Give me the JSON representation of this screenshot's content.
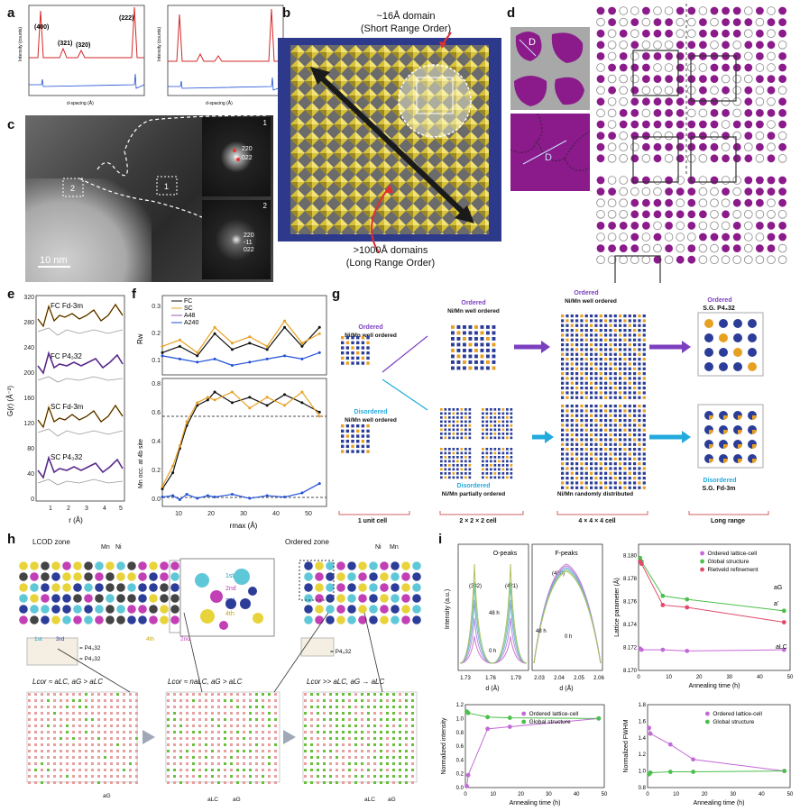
{
  "panels": {
    "a": {
      "label": "a",
      "ylabel": "Intensity (counts)",
      "xlabel": "d-spacing (Å)",
      "peaks": [
        "(400)",
        "(321)",
        "(320)",
        "(222)"
      ],
      "xticks": [
        "2.0",
        "2.2",
        "2.4",
        "2.6",
        "2.8",
        "3.0",
        "3.2",
        "3.4"
      ],
      "yticks": [
        "20",
        "15",
        "10",
        "5",
        "0"
      ]
    },
    "b": {
      "label": "b",
      "short_range_title": "~16Å domain",
      "short_range_sub": "(Short Range Order)",
      "long_range_title": ">1000Å domains",
      "long_range_sub": "(Long Range Order)"
    },
    "c": {
      "label": "c",
      "scale_bar": "10 nm",
      "box1": "1",
      "box2": "2",
      "fft1_num": "1",
      "fft2_num": "2",
      "fft1_spots": [
        "220",
        "022"
      ],
      "fft2_spots": [
        "220",
        "-11",
        "022"
      ]
    },
    "d": {
      "label": "d",
      "domain_label": "D"
    },
    "e": {
      "label": "e",
      "ylabel": "G(r) (Å⁻²)",
      "xlabel": "r (Å)",
      "yticks": [
        "320",
        "280",
        "240",
        "200",
        "160",
        "120",
        "80",
        "40",
        "0"
      ],
      "xticks": [
        "1",
        "2",
        "3",
        "4",
        "5"
      ],
      "curves": [
        "FC Fd-3m",
        "FC P4₃32",
        "SC Fd-3m",
        "SC P4₃32"
      ]
    },
    "f": {
      "label": "f",
      "legend": [
        "FC",
        "SC",
        "A48",
        "A240"
      ],
      "ylabel_top": "Rw",
      "ylabel_bottom": "Mn occ. at 4b site",
      "xlabel": "rmax (Å)",
      "yticks_top": [
        "0.3",
        "0.2",
        "0.1"
      ],
      "yticks_bottom": [
        "0.8",
        "0.6",
        "0.4",
        "0.2",
        "0.0"
      ],
      "xticks": [
        "10",
        "20",
        "30",
        "40",
        "50"
      ]
    },
    "g": {
      "label": "g",
      "ordered_title": "Ordered",
      "ordered_sub": "Ni/Mn well ordered",
      "disordered_title": "Disordered",
      "disordered_sub": "Ni/Mn well ordered",
      "disordered_partial": "Ni/Mn partially ordered",
      "random": "Ni/Mn randomly distributed",
      "sg_ordered": "S.G. P4₃32",
      "sg_disordered": "S.G. Fd-3m",
      "stages": [
        "1 unit cell",
        "2 × 2 × 2 cell",
        "4 × 4 × 4 cell",
        "Long range"
      ]
    },
    "h": {
      "label": "h",
      "lcod": "LCOD zone",
      "ordered_zone": "Ordered zone",
      "mn": "Mn",
      "ni": "Ni",
      "neighbors": [
        "1st",
        "2nd",
        "3rd",
        "4th"
      ],
      "eq1": "Lcor ≈ aLC, aG > aLC",
      "eq2": "Lcor ≈ naLC, aG > aLC",
      "eq3": "Lcor >> aLC, aG → aLC",
      "p4": "= P4₃32",
      "ag": "aG",
      "alc": "aLC"
    },
    "i": {
      "label": "i",
      "o_peaks": "O-peaks",
      "f_peaks": "F-peaks",
      "peak_labels": [
        "(332)",
        "(421)",
        "(400)"
      ],
      "h48": "48 h",
      "h0": "0 h",
      "lattice_ylabel": "Lattice parameter (Å)",
      "legend_top": [
        "Ordered lattice-cell",
        "Global structure",
        "Rietveld refinement"
      ],
      "legend_bottom": [
        "Ordered lattice-cell",
        "Global structure"
      ],
      "annealing": "Annealing time (h)",
      "norm_int": "Normalized intensity",
      "norm_fwhm": "Normalized FWHM",
      "d_label": "d (Å)",
      "intensity": "Intensity (a.u.)",
      "aG": "aG",
      "aprime": "a'",
      "aLC": "aLC"
    }
  },
  "chart_data": [
    {
      "type": "line",
      "title": "",
      "ylabel": "Rw",
      "xlabel": "rmax (Å)",
      "x": [
        5,
        10,
        15,
        20,
        25,
        30,
        35,
        40,
        45,
        50
      ],
      "series": [
        {
          "name": "FC",
          "values": [
            0.12,
            0.14,
            0.11,
            0.18,
            0.13,
            0.15,
            0.13,
            0.2,
            0.14,
            0.2
          ]
        },
        {
          "name": "SC",
          "values": [
            0.14,
            0.16,
            0.12,
            0.2,
            0.15,
            0.17,
            0.14,
            0.22,
            0.15,
            0.18
          ]
        },
        {
          "name": "A240",
          "values": [
            0.11,
            0.1,
            0.09,
            0.1,
            0.08,
            0.09,
            0.1,
            0.11,
            0.1,
            0.12
          ]
        }
      ],
      "ylim": [
        0.05,
        0.3
      ],
      "xlim": [
        5,
        52
      ]
    },
    {
      "type": "line",
      "title": "",
      "ylabel": "Mn occ. at 4b site",
      "xlabel": "rmax (Å)",
      "x": [
        5,
        8,
        10,
        12,
        15,
        18,
        20,
        25,
        30,
        35,
        40,
        45,
        50
      ],
      "series": [
        {
          "name": "FC",
          "values": [
            0.08,
            0.2,
            0.38,
            0.55,
            0.7,
            0.74,
            0.8,
            0.72,
            0.76,
            0.7,
            0.78,
            0.72,
            0.65
          ]
        },
        {
          "name": "SC",
          "values": [
            0.1,
            0.25,
            0.4,
            0.58,
            0.72,
            0.76,
            0.74,
            0.8,
            0.68,
            0.76,
            0.7,
            0.8,
            0.62
          ]
        },
        {
          "name": "A240",
          "values": [
            0.02,
            0.03,
            0.0,
            0.04,
            0.01,
            0.03,
            0.02,
            0.04,
            0.01,
            0.03,
            0.02,
            0.05,
            0.12
          ]
        }
      ],
      "ylim": [
        -0.05,
        0.9
      ],
      "xlim": [
        5,
        52
      ]
    },
    {
      "type": "line",
      "title": "",
      "ylabel": "Lattice parameter (Å)",
      "xlabel": "Annealing time (h)",
      "x": [
        0.5,
        1,
        8,
        16,
        48
      ],
      "series": [
        {
          "name": "Ordered lattice-cell",
          "values": [
            8.1719,
            8.1718,
            8.1718,
            8.1717,
            8.1718
          ]
        },
        {
          "name": "Global structure",
          "values": [
            8.1798,
            8.1795,
            8.1765,
            8.1762,
            8.1752
          ]
        },
        {
          "name": "Rietveld refinement",
          "values": [
            8.1795,
            8.1793,
            8.1757,
            8.1755,
            8.1742
          ]
        }
      ],
      "ylim": [
        8.17,
        8.181
      ],
      "xlim": [
        0,
        50
      ]
    },
    {
      "type": "line",
      "title": "",
      "ylabel": "Normalized intensity",
      "xlabel": "Annealing time (h)",
      "x": [
        0.5,
        1,
        8,
        16,
        48
      ],
      "series": [
        {
          "name": "Ordered lattice-cell",
          "values": [
            0.02,
            0.18,
            0.85,
            0.88,
            1.0
          ]
        },
        {
          "name": "Global structure",
          "values": [
            1.1,
            1.08,
            1.02,
            1.01,
            1.0
          ]
        }
      ],
      "ylim": [
        0,
        1.2
      ],
      "xlim": [
        0,
        50
      ]
    },
    {
      "type": "line",
      "title": "",
      "ylabel": "Normalized FWHM",
      "xlabel": "Annealing time (h)",
      "x": [
        0.5,
        1,
        8,
        16,
        48
      ],
      "series": [
        {
          "name": "Ordered lattice-cell",
          "values": [
            1.52,
            1.45,
            1.32,
            1.14,
            1.0
          ]
        },
        {
          "name": "Global structure",
          "values": [
            0.96,
            0.98,
            0.99,
            0.99,
            1.0
          ]
        }
      ],
      "ylim": [
        0.8,
        1.8
      ],
      "xlim": [
        0,
        50
      ]
    }
  ],
  "colors": {
    "purple": "#8b1a8b",
    "navy": "#2b3d98",
    "orange": "#e8a020",
    "green": "#6abf3a",
    "magenta": "#c23fb5",
    "pink": "#e05a8a"
  }
}
